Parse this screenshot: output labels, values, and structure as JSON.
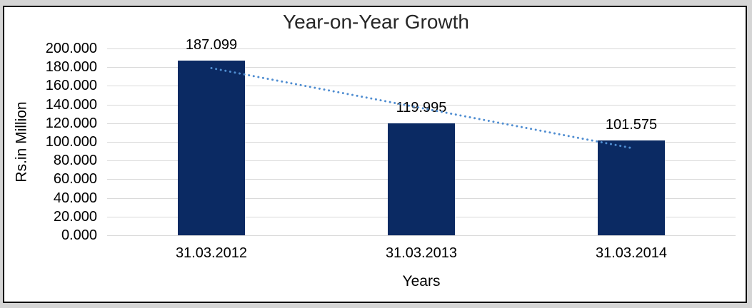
{
  "chart_data": {
    "type": "bar",
    "title": "Year-on-Year Growth",
    "categories": [
      "31.03.2012",
      "31.03.2013",
      "31.03.2014"
    ],
    "values": [
      187.099,
      119.995,
      101.575
    ],
    "data_labels": [
      "187.099",
      "119.995",
      "101.575"
    ],
    "xlabel": "Years",
    "ylabel": "Rs.in Million",
    "ylim": [
      0,
      200
    ],
    "ytick_step": 20,
    "ytick_labels": [
      "200.000",
      "180.000",
      "160.000",
      "140.000",
      "120.000",
      "100.000",
      "80.000",
      "60.000",
      "40.000",
      "20.000",
      "0.000"
    ],
    "grid": "horizontal",
    "legend": "none",
    "trendline": {
      "type": "linear",
      "style": "dotted",
      "fitted_values": [
        179.0,
        136.25,
        93.5
      ]
    },
    "colors": {
      "bar": "#0b2a63",
      "trendline": "#4f8dd1",
      "gridline": "#d9d9d9",
      "text": "#000000",
      "title_text": "#262626",
      "frame_border": "#000000",
      "chart_background": "#ffffff",
      "outer_background": "#d5d5d5"
    }
  }
}
